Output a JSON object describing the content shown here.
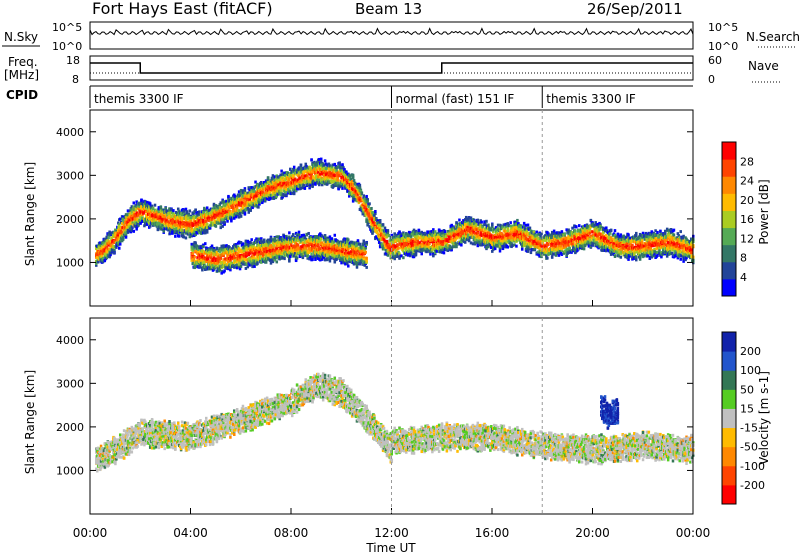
{
  "header": {
    "station": "Fort Hays East (fitACF)",
    "beam": "Beam 13",
    "date": "26/Sep/2011"
  },
  "noise_panel": {
    "left_label": "N.Sky",
    "right_label": "N.Search",
    "left_ticks": [
      "10^5",
      "10^0"
    ],
    "right_ticks": [
      "10^5",
      "10^0"
    ]
  },
  "freq_panel": {
    "left_label_1": "Freq.",
    "left_label_2": "[MHz]",
    "right_label": "Nave",
    "left_ticks": [
      "18",
      "8"
    ],
    "right_ticks": [
      "60",
      "0"
    ],
    "freq_segments": [
      {
        "start_h": 0.0,
        "end_h": 2.0,
        "level": "high"
      },
      {
        "start_h": 2.0,
        "end_h": 14.0,
        "level": "low"
      },
      {
        "start_h": 14.0,
        "end_h": 24.0,
        "level": "high"
      }
    ]
  },
  "cpid": {
    "label": "CPID",
    "segments": [
      {
        "start_h": 0.0,
        "text": "themis 3300 IF"
      },
      {
        "start_h": 12.0,
        "text": "normal (fast) 151 IF"
      },
      {
        "start_h": 18.0,
        "text": "themis 3300 IF"
      }
    ]
  },
  "chart_data": [
    {
      "type": "heatmap",
      "quantity": "power",
      "ylabel": "Slant Range [km]",
      "ylim": [
        0,
        4500
      ],
      "yticks": [
        "1000",
        "2000",
        "3000",
        "4000"
      ],
      "xlim": [
        0,
        24
      ],
      "colorbar_label": "Power [dB]",
      "colorbar_ticks": [
        "4",
        "8",
        "12",
        "16",
        "20",
        "24",
        "28"
      ],
      "colorbar_range": [
        0,
        32
      ],
      "colors": [
        "#0000ff",
        "#224499",
        "#337766",
        "#55aa55",
        "#aacc22",
        "#ffbb00",
        "#ff8800",
        "#ff4400",
        "#ff0000"
      ],
      "traces": [
        {
          "x": [
            0.2,
            0.5,
            1.0,
            1.5,
            2.0,
            3.0,
            4.0,
            5.0,
            6.0,
            7.0,
            8.0,
            9.0,
            10.0,
            10.5,
            11.0,
            11.5,
            12.0
          ],
          "y": [
            1200,
            1300,
            1600,
            2000,
            2200,
            2000,
            1900,
            2100,
            2400,
            2700,
            2900,
            3100,
            3000,
            2700,
            2200,
            1700,
            1300
          ]
        },
        {
          "x": [
            4.0,
            5.0,
            6.0,
            7.0,
            8.0,
            9.0,
            10.0,
            11.0
          ],
          "y": [
            1200,
            1100,
            1200,
            1300,
            1400,
            1400,
            1300,
            1200
          ]
        },
        {
          "x": [
            12.0,
            13.0,
            14.0,
            15.0,
            16.0,
            17.0,
            18.0,
            19.0,
            20.0,
            21.0,
            22.0,
            23.0,
            24.0
          ],
          "y": [
            1400,
            1500,
            1500,
            1800,
            1600,
            1700,
            1400,
            1500,
            1700,
            1400,
            1400,
            1500,
            1300
          ]
        }
      ]
    },
    {
      "type": "heatmap",
      "quantity": "velocity",
      "ylabel": "Slant Range [km]",
      "ylim": [
        0,
        4500
      ],
      "yticks": [
        "1000",
        "2000",
        "3000",
        "4000"
      ],
      "xlim": [
        0,
        24
      ],
      "xticks": [
        "00:00",
        "04:00",
        "08:00",
        "12:00",
        "16:00",
        "20:00",
        "00:00"
      ],
      "xlabel": "Time UT",
      "colorbar_label": "Velocity [m s-1]",
      "colorbar_ticks": [
        "200",
        "100",
        "50",
        "15",
        "-15",
        "-50",
        "-100",
        "-200"
      ],
      "colors": [
        "#1122aa",
        "#2255cc",
        "#337755",
        "#55cc22",
        "#c0c0c0",
        "#ffbb00",
        "#ff8800",
        "#ff4400",
        "#ff0000"
      ],
      "traces": [
        {
          "x": [
            0.2,
            1.0,
            2.0,
            4.0,
            6.0,
            8.0,
            9.0,
            10.0,
            11.0,
            12.0
          ],
          "y": [
            1300,
            1500,
            1900,
            1800,
            2200,
            2600,
            3000,
            2800,
            2200,
            1500
          ]
        },
        {
          "x": [
            12.0,
            14.0,
            16.0,
            18.0,
            20.0,
            22.0,
            24.0
          ],
          "y": [
            1700,
            1800,
            1800,
            1600,
            1500,
            1600,
            1500
          ]
        },
        {
          "x": [
            20.3,
            20.6,
            21.0
          ],
          "y": [
            2500,
            2300,
            2400
          ]
        }
      ]
    }
  ]
}
